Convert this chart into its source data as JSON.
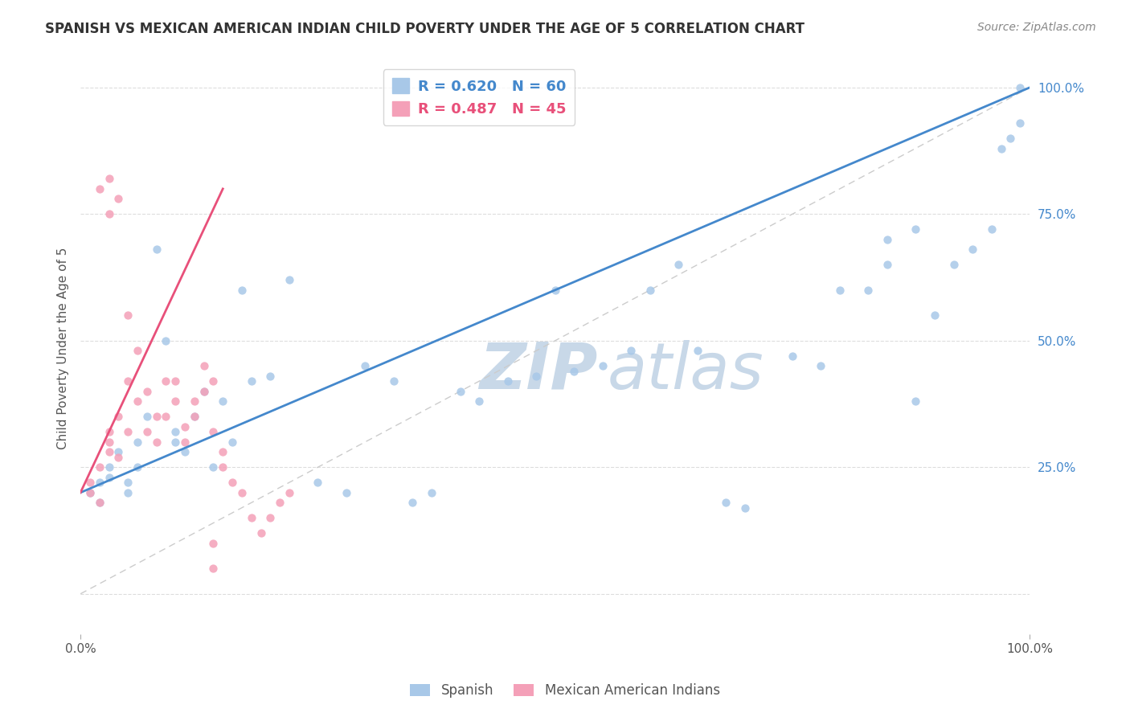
{
  "title": "SPANISH VS MEXICAN AMERICAN INDIAN CHILD POVERTY UNDER THE AGE OF 5 CORRELATION CHART",
  "source": "Source: ZipAtlas.com",
  "ylabel": "Child Poverty Under the Age of 5",
  "ytick_values": [
    0,
    25,
    50,
    75,
    100
  ],
  "ytick_labels": [
    "",
    "25.0%",
    "50.0%",
    "75.0%",
    "100.0%"
  ],
  "xtick_values": [
    0,
    100
  ],
  "xtick_labels": [
    "0.0%",
    "100.0%"
  ],
  "xlim": [
    0,
    100
  ],
  "ylim": [
    0,
    105
  ],
  "legend1_label": "R = 0.620   N = 60",
  "legend2_label": "R = 0.487   N = 45",
  "scatter_blue_color": "#a8c8e8",
  "scatter_pink_color": "#f4a0b8",
  "line_blue_color": "#4488cc",
  "line_pink_color": "#e8507a",
  "ytick_color": "#4488cc",
  "watermark_color": "#c8d8e8",
  "footer_label1": "Spanish",
  "footer_label2": "Mexican American Indians",
  "blue_line_x0": 0,
  "blue_line_y0": 20,
  "blue_line_x1": 100,
  "blue_line_y1": 100,
  "pink_line_x0": 0,
  "pink_line_y0": 20,
  "pink_line_x1": 15,
  "pink_line_y1": 80,
  "ref_line_color": "#cccccc",
  "blue_x": [
    1,
    2,
    2,
    3,
    3,
    4,
    5,
    5,
    6,
    6,
    7,
    8,
    9,
    10,
    10,
    11,
    12,
    13,
    14,
    15,
    16,
    17,
    18,
    20,
    22,
    25,
    28,
    30,
    33,
    35,
    37,
    40,
    42,
    45,
    48,
    50,
    52,
    55,
    58,
    60,
    63,
    65,
    68,
    70,
    75,
    78,
    80,
    83,
    85,
    88,
    90,
    92,
    94,
    96,
    97,
    98,
    99,
    99,
    85,
    88
  ],
  "blue_y": [
    20,
    22,
    18,
    25,
    23,
    28,
    20,
    22,
    30,
    25,
    35,
    68,
    50,
    30,
    32,
    28,
    35,
    40,
    25,
    38,
    30,
    60,
    42,
    43,
    62,
    22,
    20,
    45,
    42,
    18,
    20,
    40,
    38,
    42,
    43,
    60,
    44,
    45,
    48,
    60,
    65,
    48,
    18,
    17,
    47,
    45,
    60,
    60,
    65,
    38,
    55,
    65,
    68,
    72,
    88,
    90,
    93,
    100,
    70,
    72
  ],
  "pink_x": [
    1,
    1,
    2,
    2,
    3,
    3,
    3,
    4,
    4,
    5,
    5,
    5,
    6,
    6,
    7,
    7,
    8,
    8,
    9,
    9,
    10,
    10,
    11,
    11,
    12,
    12,
    13,
    13,
    14,
    14,
    15,
    15,
    16,
    17,
    18,
    19,
    20,
    21,
    22,
    2,
    3,
    3,
    14,
    14,
    4
  ],
  "pink_y": [
    20,
    22,
    18,
    25,
    28,
    30,
    32,
    27,
    35,
    32,
    55,
    42,
    38,
    48,
    40,
    32,
    35,
    30,
    42,
    35,
    38,
    42,
    30,
    33,
    35,
    38,
    40,
    45,
    42,
    32,
    28,
    25,
    22,
    20,
    15,
    12,
    15,
    18,
    20,
    80,
    75,
    82,
    10,
    5,
    78
  ]
}
